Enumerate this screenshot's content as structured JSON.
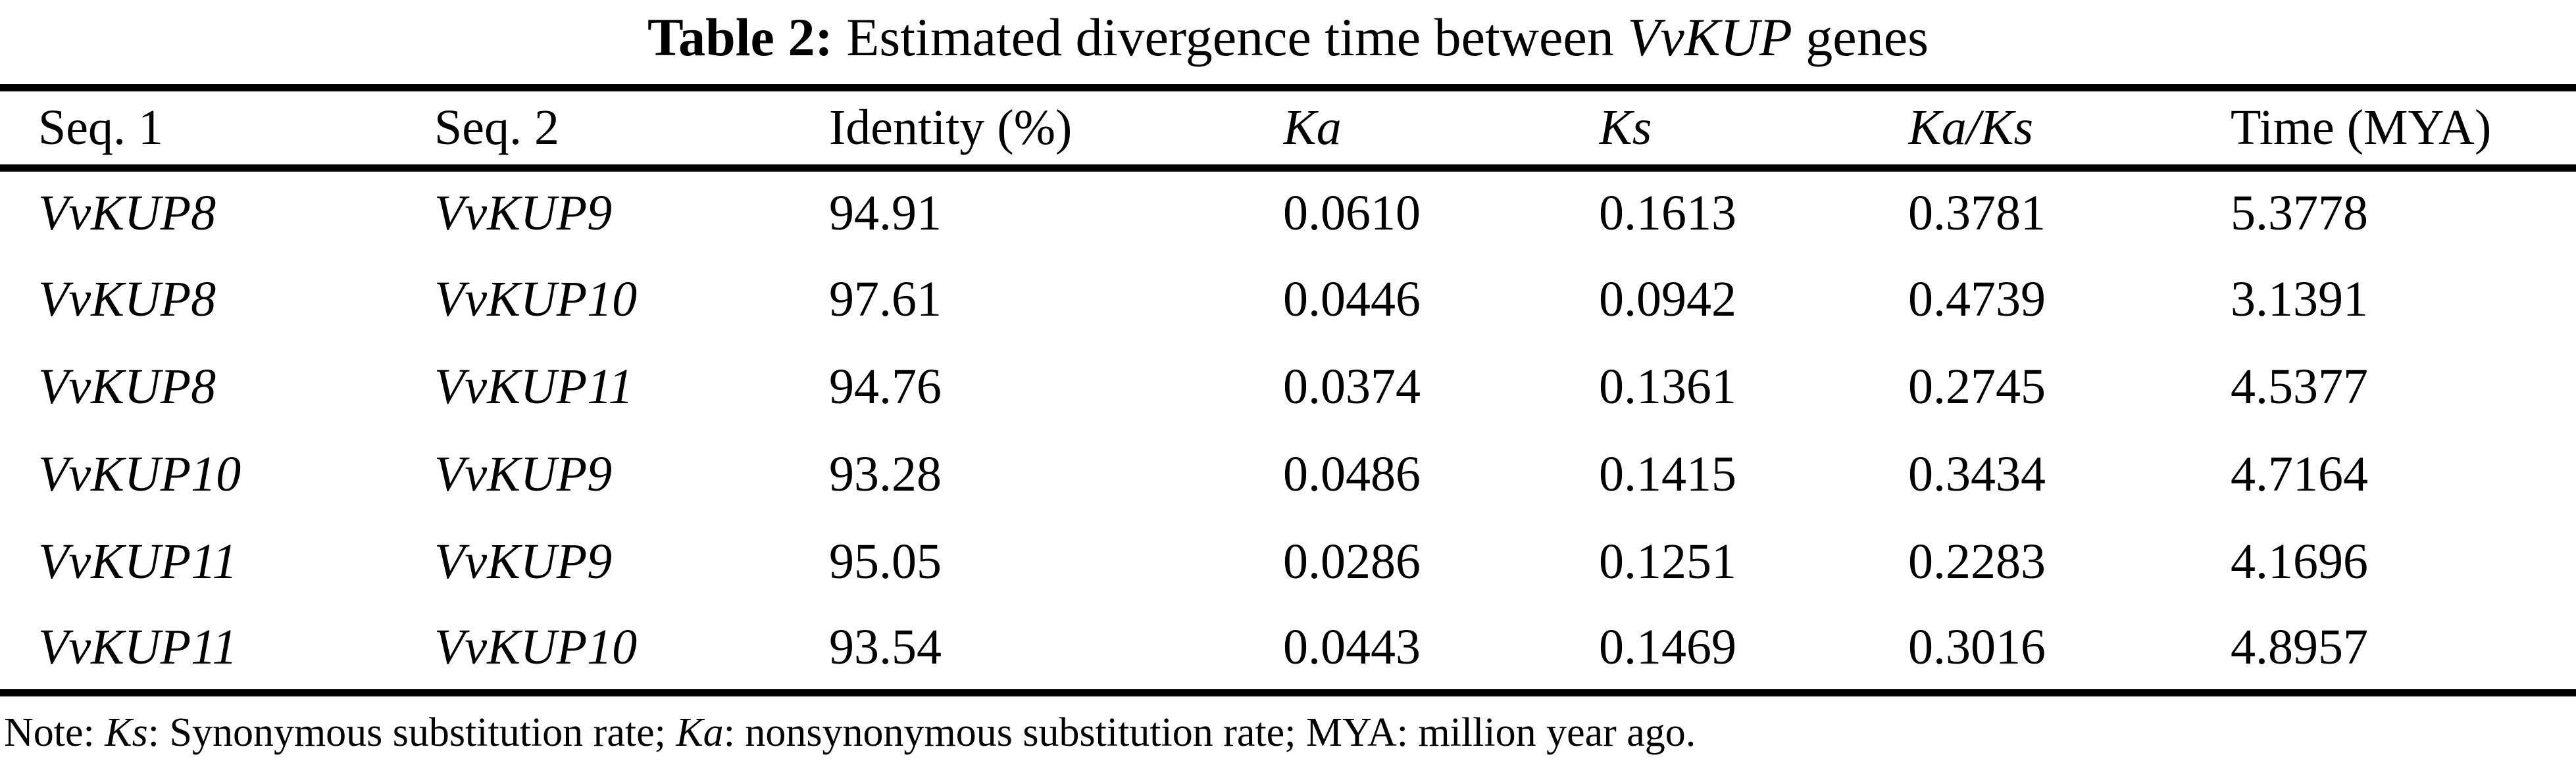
{
  "page": {
    "background_color": "#ffffff",
    "text_color": "#000000"
  },
  "title": {
    "full_text": "Table 2: Estimated divergence time between VvKUP genes",
    "segments": [
      {
        "text": "Table 2:",
        "bold": true,
        "italic": false
      },
      {
        "text": "  Estimated divergence time between ",
        "bold": false,
        "italic": false
      },
      {
        "text": "VvKUP",
        "bold": false,
        "italic": true
      },
      {
        "text": " genes",
        "bold": false,
        "italic": false
      }
    ]
  },
  "table": {
    "columns": [
      {
        "label": "Seq. 1",
        "italic": false
      },
      {
        "label": "Seq. 2",
        "italic": false
      },
      {
        "label": "Identity (%)",
        "italic": false
      },
      {
        "label": "Ka",
        "italic": true
      },
      {
        "label": "Ks",
        "italic": true
      },
      {
        "label": "Ka/Ks",
        "italic": true
      },
      {
        "label": "Time (MYA)",
        "italic": false
      }
    ],
    "body_italic_columns": [
      0,
      1
    ],
    "rows": [
      [
        "VvKUP8",
        "VvKUP9",
        "94.91",
        "0.0610",
        "0.1613",
        "0.3781",
        "5.3778"
      ],
      [
        "VvKUP8",
        "VvKUP10",
        "97.61",
        "0.0446",
        "0.0942",
        "0.4739",
        "3.1391"
      ],
      [
        "VvKUP8",
        "VvKUP11",
        "94.76",
        "0.0374",
        "0.1361",
        "0.2745",
        "4.5377"
      ],
      [
        "VvKUP10",
        "VvKUP9",
        "93.28",
        "0.0486",
        "0.1415",
        "0.3434",
        "4.7164"
      ],
      [
        "VvKUP11",
        "VvKUP9",
        "95.05",
        "0.0286",
        "0.1251",
        "0.2283",
        "4.1696"
      ],
      [
        "VvKUP11",
        "VvKUP10",
        "93.54",
        "0.0443",
        "0.1469",
        "0.3016",
        "4.8957"
      ]
    ]
  },
  "note": {
    "full_text": "Note: Ks: Synonymous substitution rate; Ka: nonsynonymous substitution rate; MYA: million year ago.",
    "segments": [
      {
        "text": "Note: ",
        "italic": false
      },
      {
        "text": "Ks",
        "italic": true
      },
      {
        "text": ": Synonymous substitution rate; ",
        "italic": false
      },
      {
        "text": "Ka",
        "italic": true
      },
      {
        "text": ": nonsynonymous substitution rate; MYA: million year ago.",
        "italic": false
      }
    ]
  }
}
